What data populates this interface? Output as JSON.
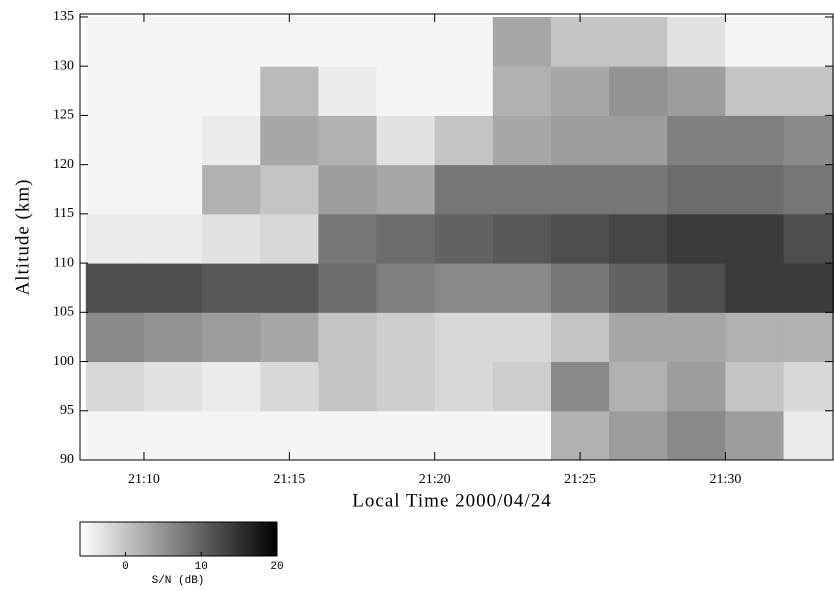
{
  "chart_data": {
    "type": "heatmap",
    "xlabel": "Local Time  2000/04/24",
    "ylabel": "Altitude (km)",
    "colorbar_label": "S/N  (dB)",
    "xlim": [
      7.8,
      33.7
    ],
    "ylim": [
      90,
      135.3
    ],
    "xticks": [
      {
        "value": 10,
        "label": "21:10"
      },
      {
        "value": 15,
        "label": "21:15"
      },
      {
        "value": 20,
        "label": "21:20"
      },
      {
        "value": 25,
        "label": "21:25"
      },
      {
        "value": 30,
        "label": "21:30"
      }
    ],
    "yticks": [
      90,
      95,
      100,
      105,
      110,
      115,
      120,
      125,
      130,
      135
    ],
    "xbins": [
      8,
      10,
      12,
      14,
      16,
      18,
      20,
      22,
      24,
      26,
      28,
      30,
      32,
      34
    ],
    "ybins": [
      90,
      95,
      100,
      105,
      110,
      115,
      120,
      125,
      130,
      135
    ],
    "z": [
      [
        -5,
        -5,
        -5,
        -5,
        -5,
        -5,
        -5,
        -5,
        2,
        4,
        6,
        4,
        -4
      ],
      [
        -2,
        -3,
        -4,
        -2,
        0,
        -1,
        -2,
        -1,
        6,
        2,
        4,
        0,
        -2
      ],
      [
        6,
        5,
        4,
        3,
        0,
        -1,
        -2,
        -2,
        0,
        3,
        3,
        2,
        2
      ],
      [
        12,
        12,
        11,
        11,
        9,
        7,
        6,
        6,
        8,
        10,
        12,
        14,
        14
      ],
      [
        -4,
        -4,
        -3,
        -2,
        8,
        9,
        10,
        11,
        12,
        13,
        14,
        14,
        12
      ],
      [
        -5,
        -5,
        2,
        0,
        4,
        3,
        8,
        8,
        8,
        8,
        9,
        9,
        8
      ],
      [
        -5,
        -5,
        -4,
        3,
        2,
        -3,
        0,
        3,
        4,
        4,
        7,
        7,
        6
      ],
      [
        -5,
        -5,
        -5,
        1,
        -4,
        -5,
        -5,
        2,
        3,
        5,
        4,
        0,
        0
      ],
      [
        -5,
        -5,
        -5,
        -5,
        -5,
        -5,
        -5,
        3,
        0,
        0,
        -3,
        -5,
        -5
      ]
    ],
    "clim": [
      -6,
      20
    ],
    "cticks": [
      0,
      10,
      20
    ],
    "colormap": "gray_r"
  }
}
